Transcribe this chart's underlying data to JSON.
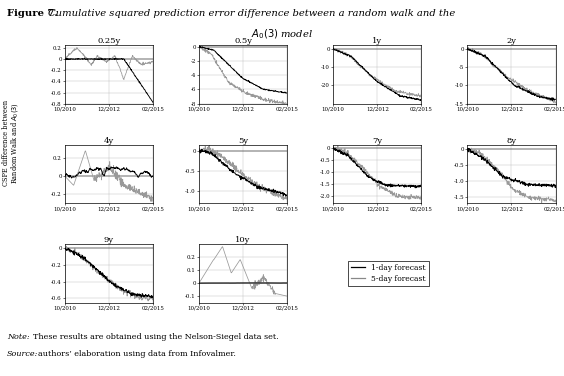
{
  "subplots": [
    {
      "title": "0.25y",
      "ylim": [
        -0.8,
        0.25
      ],
      "yticks": [
        0.2,
        0,
        -0.2,
        -0.4,
        -0.6,
        -0.8
      ],
      "row": 0,
      "col": 0
    },
    {
      "title": "0.5y",
      "ylim": [
        -8,
        0.2
      ],
      "yticks": [
        0,
        -2,
        -4,
        -6,
        -8
      ],
      "row": 0,
      "col": 1
    },
    {
      "title": "1y",
      "ylim": [
        -30,
        2
      ],
      "yticks": [
        0,
        -10,
        -20
      ],
      "row": 0,
      "col": 2
    },
    {
      "title": "2y",
      "ylim": [
        -15,
        1
      ],
      "yticks": [
        0,
        -5,
        -10,
        -15
      ],
      "row": 0,
      "col": 3
    },
    {
      "title": "4y",
      "ylim": [
        -0.3,
        0.35
      ],
      "yticks": [
        0.2,
        0,
        -0.2
      ],
      "row": 1,
      "col": 0
    },
    {
      "title": "5y",
      "ylim": [
        -1.3,
        0.15
      ],
      "yticks": [
        0,
        -0.5,
        -1.0
      ],
      "row": 1,
      "col": 1
    },
    {
      "title": "7y",
      "ylim": [
        -2.3,
        0.15
      ],
      "yticks": [
        0,
        -0.5,
        -1.0,
        -1.5,
        -2.0
      ],
      "row": 1,
      "col": 2
    },
    {
      "title": "8y",
      "ylim": [
        -1.7,
        0.15
      ],
      "yticks": [
        0,
        -0.5,
        -1.0,
        -1.5
      ],
      "row": 1,
      "col": 3
    },
    {
      "title": "9y",
      "ylim": [
        -0.65,
        0.05
      ],
      "yticks": [
        0,
        -0.2,
        -0.4,
        -0.6
      ],
      "row": 2,
      "col": 0
    },
    {
      "title": "10y",
      "ylim": [
        -0.15,
        0.3
      ],
      "yticks": [
        0.2,
        0.1,
        0,
        -0.1
      ],
      "row": 2,
      "col": 1
    }
  ],
  "x_tick_labels": [
    "10/2010",
    "12/2012",
    "02/2015"
  ],
  "legend_labels": [
    "1-day forecast",
    "5-day forecast"
  ],
  "legend_colors": [
    "#000000",
    "#888888"
  ],
  "background_color": "#ffffff",
  "line_color_1day": "#000000",
  "line_color_5day": "#999999",
  "seed": 42
}
